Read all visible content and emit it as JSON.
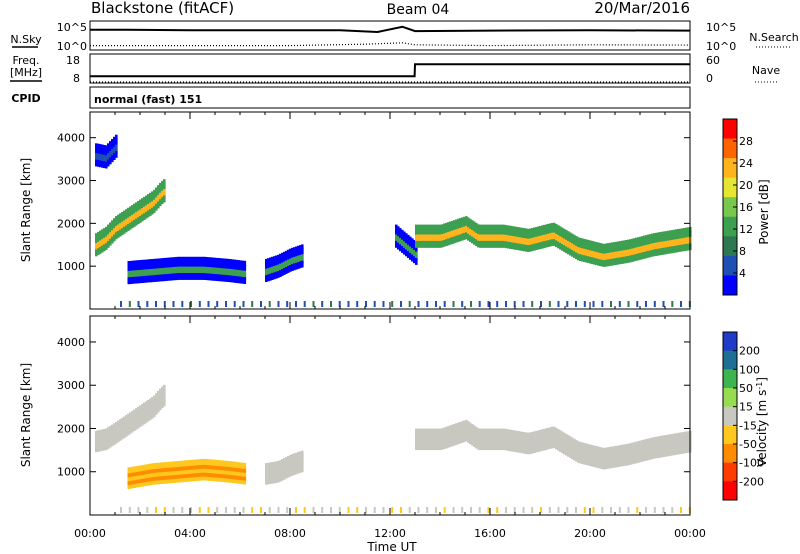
{
  "header": {
    "station": "Blackstone (fitACF)",
    "beam": "Beam 04",
    "date": "20/Mar/2016"
  },
  "chart_data": [
    {
      "type": "line",
      "panel": "noise",
      "left_labels": [
        "N.Sky",
        "10^5",
        "10^0"
      ],
      "right_labels": [
        "N.Search",
        "10^5",
        "10^0"
      ],
      "scale": "log",
      "series": [
        {
          "name": "N.Sky",
          "style": "solid",
          "x": [
            "00:00",
            "00:30",
            "01:00",
            "04:00",
            "08:00",
            "10:00",
            "11:30",
            "12:30",
            "13:00",
            "16:00",
            "20:00",
            "24:00"
          ],
          "y_level": [
            0.3,
            0.3,
            0.3,
            0.32,
            0.32,
            0.32,
            0.38,
            0.2,
            0.35,
            0.33,
            0.32,
            0.33
          ]
        },
        {
          "name": "N.Search",
          "style": "dotted",
          "x": [
            "00:00",
            "01:00",
            "04:00",
            "08:00",
            "11:00",
            "12:30",
            "13:00",
            "16:00",
            "20:00",
            "24:00"
          ],
          "y_level": [
            0.85,
            0.85,
            0.85,
            0.85,
            0.8,
            0.75,
            0.82,
            0.85,
            0.82,
            0.83
          ]
        }
      ]
    },
    {
      "type": "line",
      "panel": "frequency",
      "left_labels": [
        "Freq.",
        "[MHz]",
        "18",
        "8"
      ],
      "right_labels": [
        "60",
        "0",
        "Nave"
      ],
      "series": [
        {
          "name": "Freq.",
          "style": "solid",
          "x": [
            "00:00",
            "12:59",
            "13:00",
            "24:00"
          ],
          "y": [
            10.3,
            10.3,
            14.5,
            14.5
          ]
        },
        {
          "name": "Nave",
          "style": "dotted",
          "x": [
            "00:00",
            "24:00"
          ],
          "y": [
            0,
            0
          ]
        }
      ]
    },
    {
      "type": "table",
      "panel": "cpid",
      "label": "CPID",
      "value": "normal (fast) 151"
    },
    {
      "type": "heatmap",
      "panel": "power",
      "ylabel": "Slant Range [km]",
      "xlabel": "Time UT",
      "x_ticks": [
        "00:00",
        "04:00",
        "08:00",
        "12:00",
        "16:00",
        "20:00",
        "00:00"
      ],
      "y_ticks": [
        "1000",
        "2000",
        "3000",
        "4000"
      ],
      "ylim": [
        0,
        4600
      ],
      "colorbar": {
        "label": "Power [dB]",
        "ticks": [
          "4",
          "8",
          "12",
          "16",
          "20",
          "24",
          "28"
        ],
        "range": [
          0,
          30
        ],
        "colors": [
          "#0000ff",
          "#1e50b4",
          "#2d7850",
          "#3ca050",
          "#78c850",
          "#e6e632",
          "#ffb41e",
          "#ff6400",
          "#ff0000"
        ]
      },
      "features": [
        {
          "t": [
            0.2,
            0.6,
            1.0,
            1.5,
            2.0,
            2.5,
            2.8,
            3.0
          ],
          "range": [
            1500,
            1650,
            1900,
            2100,
            2300,
            2500,
            2700,
            2800
          ],
          "value": 24
        },
        {
          "t": [
            1.5,
            2.5,
            3.5,
            4.5,
            5.5,
            6.2
          ],
          "range": [
            850,
            900,
            950,
            950,
            900,
            850
          ],
          "value": 10
        },
        {
          "t": [
            7.0,
            7.5,
            8.0,
            8.5
          ],
          "range": [
            900,
            1000,
            1150,
            1250
          ],
          "value": 12
        },
        {
          "t": [
            12.2,
            12.6,
            13.0
          ],
          "range": [
            1700,
            1500,
            1300
          ],
          "value": 12
        },
        {
          "t": [
            13.0,
            14.0,
            15.0,
            15.5,
            16.5,
            17.5,
            18.5,
            19.5,
            20.5,
            21.5,
            22.5,
            24.0
          ],
          "range": [
            1700,
            1700,
            1900,
            1700,
            1700,
            1600,
            1750,
            1400,
            1250,
            1350,
            1500,
            1650
          ],
          "value": 22
        },
        {
          "t": [
            0.2,
            0.6,
            1.0
          ],
          "range": [
            3600,
            3550,
            3800
          ],
          "value": 4
        }
      ]
    },
    {
      "type": "heatmap",
      "panel": "velocity",
      "ylabel": "Slant Range [km]",
      "xlabel": "Time UT",
      "x_ticks": [
        "00:00",
        "04:00",
        "08:00",
        "12:00",
        "16:00",
        "20:00",
        "00:00"
      ],
      "y_ticks": [
        "1000",
        "2000",
        "3000",
        "4000"
      ],
      "ylim": [
        0,
        4600
      ],
      "colorbar": {
        "label": "Velocity [m s-1]",
        "label_main": "Velocity [",
        "label_unit": "m s",
        "label_exp": "-1",
        "label_end": "]",
        "ticks": [
          "200",
          "100",
          "50",
          "15",
          "-15",
          "-50",
          "-100",
          "-200"
        ],
        "colors": [
          "#1e3cc8",
          "#1e6e96",
          "#3cb450",
          "#96dc50",
          "#c8c8c0",
          "#ffc81e",
          "#ff8c00",
          "#ff3c00",
          "#ff0000"
        ]
      },
      "features": [
        {
          "t": [
            0.2,
            0.6,
            1.0,
            1.5,
            2.0,
            2.5,
            2.8,
            3.0
          ],
          "range": [
            1700,
            1750,
            1900,
            2100,
            2300,
            2500,
            2700,
            2800
          ],
          "value": 0
        },
        {
          "t": [
            1.5,
            2.5,
            3.5,
            4.5,
            5.5,
            6.2
          ],
          "range": [
            850,
            950,
            1000,
            1050,
            1000,
            950
          ],
          "value": -60
        },
        {
          "t": [
            7.0,
            7.5,
            8.0,
            8.5
          ],
          "range": [
            950,
            1000,
            1150,
            1250
          ],
          "value": 0
        },
        {
          "t": [
            13.0,
            14.0,
            15.0,
            15.5,
            16.5,
            17.5,
            18.5,
            19.5,
            20.5,
            21.5,
            22.5,
            24.0
          ],
          "range": [
            1750,
            1750,
            1950,
            1750,
            1750,
            1650,
            1800,
            1450,
            1300,
            1400,
            1550,
            1700
          ],
          "value": 0
        }
      ]
    }
  ]
}
